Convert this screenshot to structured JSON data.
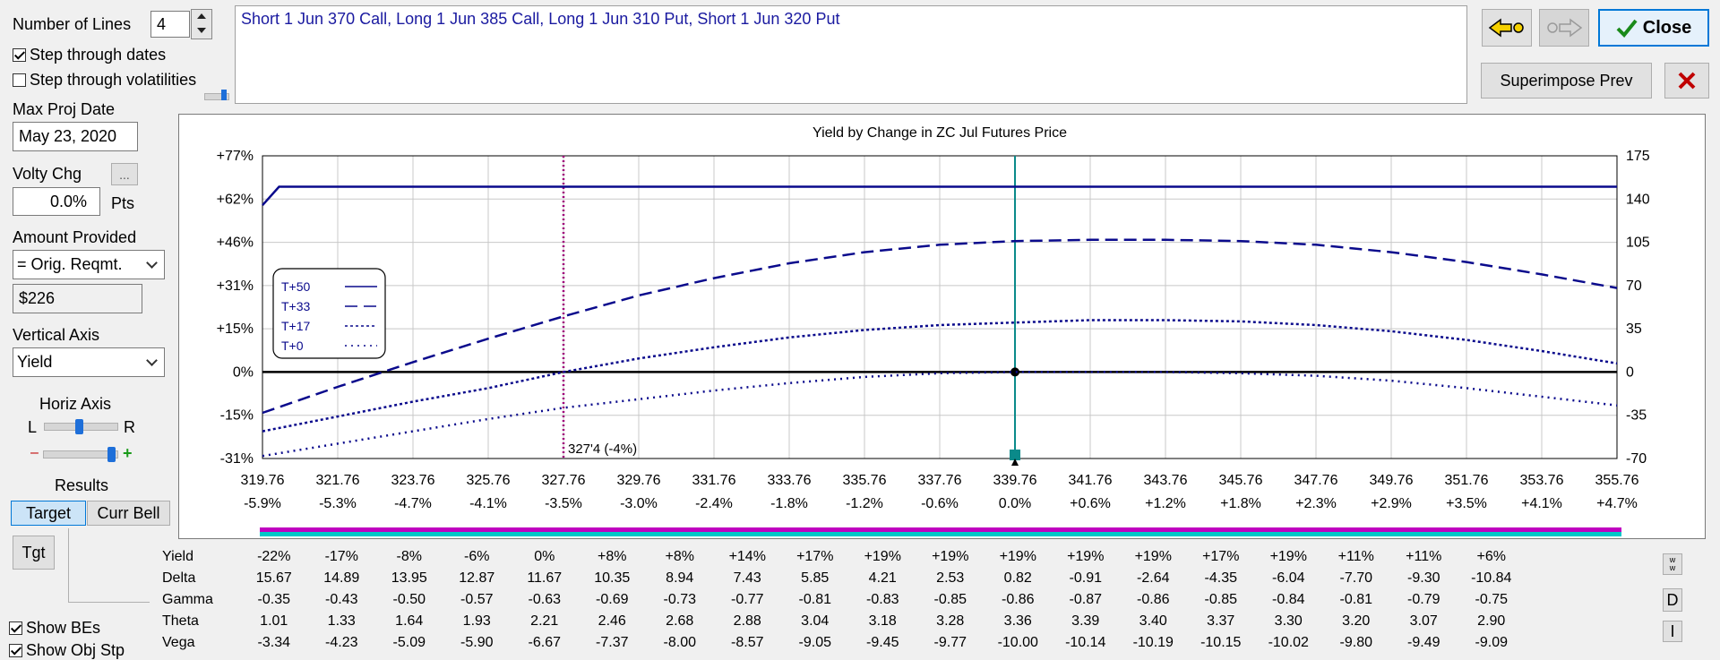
{
  "left_panel": {
    "number_of_lines_label": "Number of Lines",
    "number_of_lines_value": "4",
    "step_dates_label": "Step through dates",
    "step_dates_checked": true,
    "step_vols_label": "Step through volatilities",
    "step_vols_checked": false,
    "max_proj_date_label": "Max Proj Date",
    "max_proj_date_value": "May 23, 2020",
    "volty_chg_label": "Volty Chg",
    "volty_chg_button": "...",
    "volty_chg_value": "0.0%",
    "volty_chg_unit": "Pts",
    "amount_provided_label": "Amount Provided",
    "amount_provided_select": "= Orig. Reqmt.",
    "amount_value": "$226",
    "vertical_axis_label": "Vertical Axis",
    "vertical_axis_select": "Yield",
    "horiz_axis_label": "Horiz Axis",
    "horiz_l": "L",
    "horiz_r": "R",
    "zoom_minus": "–",
    "zoom_plus": "+",
    "results_label": "Results",
    "tab_target": "Target",
    "tab_curr_bell": "Curr Bell",
    "tgt_button": "Tgt",
    "show_bes_label": "Show BEs",
    "show_bes_checked": true,
    "show_obj_stp_label": "Show Obj Stp",
    "show_obj_stp_checked": true
  },
  "position_text": "Short 1 Jun 370 Call, Long 1 Jun 385 Call, Long 1 Jun 310 Put, Short 1 Jun 320 Put",
  "toolbar": {
    "close_label": "Close",
    "superimpose_label": "Superimpose Prev"
  },
  "chart_data": {
    "type": "line",
    "title": "Yield by Change in ZC Jul Futures Price",
    "x_ticks": [
      "319.76",
      "321.76",
      "323.76",
      "325.76",
      "327.76",
      "329.76",
      "331.76",
      "333.76",
      "335.76",
      "337.76",
      "339.76",
      "341.76",
      "343.76",
      "345.76",
      "347.76",
      "349.76",
      "351.76",
      "353.76",
      "355.76"
    ],
    "x_pct_ticks": [
      "-5.9%",
      "-5.3%",
      "-4.7%",
      "-4.1%",
      "-3.5%",
      "-3.0%",
      "-2.4%",
      "-1.8%",
      "-1.2%",
      "-0.6%",
      "0.0%",
      "+0.6%",
      "+1.2%",
      "+1.8%",
      "+2.3%",
      "+2.9%",
      "+3.5%",
      "+4.1%",
      "+4.7%"
    ],
    "xlim": [
      319.76,
      355.76
    ],
    "y_left_ticks": [
      "+77%",
      "+62%",
      "+46%",
      "+31%",
      "+15%",
      "0%",
      "-15%",
      "-31%"
    ],
    "y_right_ticks": [
      "175",
      "140",
      "105",
      "70",
      "35",
      "0",
      "-35",
      "-70"
    ],
    "ylim_right": [
      -70,
      175
    ],
    "current_price": 339.76,
    "breakeven_price": 327.76,
    "breakeven_label": "327'4 (-4%)",
    "legend_placement": "left",
    "series": [
      {
        "name": "T+50",
        "style": "solid",
        "points": [
          [
            319.76,
            135
          ],
          [
            320.2,
            150
          ],
          [
            322,
            150
          ],
          [
            326,
            150
          ],
          [
            330,
            150
          ],
          [
            334,
            150
          ],
          [
            338,
            150
          ],
          [
            340,
            150
          ],
          [
            344,
            150
          ],
          [
            348,
            150
          ],
          [
            352,
            150
          ],
          [
            355.76,
            150
          ]
        ]
      },
      {
        "name": "T+33",
        "style": "dash",
        "points": [
          [
            319.76,
            -33
          ],
          [
            321.76,
            -12
          ],
          [
            323.76,
            8
          ],
          [
            325.76,
            27
          ],
          [
            327.76,
            45
          ],
          [
            329.76,
            62
          ],
          [
            331.76,
            76
          ],
          [
            333.76,
            88
          ],
          [
            335.76,
            97
          ],
          [
            337.76,
            103
          ],
          [
            339.76,
            106
          ],
          [
            341.76,
            107
          ],
          [
            343.76,
            107
          ],
          [
            345.76,
            106
          ],
          [
            347.76,
            103
          ],
          [
            349.76,
            97
          ],
          [
            351.76,
            89
          ],
          [
            353.76,
            79
          ],
          [
            355.76,
            68
          ]
        ]
      },
      {
        "name": "T+17",
        "style": "dot-dash",
        "points": [
          [
            319.76,
            -48
          ],
          [
            321.76,
            -36
          ],
          [
            323.76,
            -24
          ],
          [
            325.76,
            -13
          ],
          [
            327.76,
            0
          ],
          [
            329.76,
            11
          ],
          [
            331.76,
            20
          ],
          [
            333.76,
            28
          ],
          [
            335.76,
            34
          ],
          [
            337.76,
            38
          ],
          [
            339.76,
            40
          ],
          [
            341.76,
            42
          ],
          [
            343.76,
            42
          ],
          [
            345.76,
            41
          ],
          [
            347.76,
            38
          ],
          [
            349.76,
            33
          ],
          [
            351.76,
            26
          ],
          [
            353.76,
            17
          ],
          [
            355.76,
            7
          ]
        ]
      },
      {
        "name": "T+0",
        "style": "dot",
        "points": [
          [
            319.76,
            -68
          ],
          [
            321.76,
            -58
          ],
          [
            323.76,
            -48
          ],
          [
            325.76,
            -38
          ],
          [
            327.76,
            -29
          ],
          [
            329.76,
            -22
          ],
          [
            331.76,
            -15
          ],
          [
            333.76,
            -9
          ],
          [
            335.76,
            -4
          ],
          [
            337.76,
            -1
          ],
          [
            339.76,
            0
          ],
          [
            341.76,
            0
          ],
          [
            343.76,
            0
          ],
          [
            345.76,
            -1
          ],
          [
            347.76,
            -3
          ],
          [
            349.76,
            -7
          ],
          [
            351.76,
            -13
          ],
          [
            353.76,
            -20
          ],
          [
            355.76,
            -27
          ]
        ]
      }
    ]
  },
  "greeks": {
    "rows": [
      {
        "name": "Yield",
        "values": [
          "-22%",
          "-17%",
          "-8%",
          "-6%",
          "0%",
          "+8%",
          "+8%",
          "+14%",
          "+17%",
          "+19%",
          "+19%",
          "+19%",
          "+19%",
          "+19%",
          "+17%",
          "+19%",
          "+11%",
          "+11%",
          "+6%"
        ]
      },
      {
        "name": "Delta",
        "values": [
          "15.67",
          "14.89",
          "13.95",
          "12.87",
          "11.67",
          "10.35",
          "8.94",
          "7.43",
          "5.85",
          "4.21",
          "2.53",
          "0.82",
          "-0.91",
          "-2.64",
          "-4.35",
          "-6.04",
          "-7.70",
          "-9.30",
          "-10.84"
        ]
      },
      {
        "name": "Gamma",
        "values": [
          "-0.35",
          "-0.43",
          "-0.50",
          "-0.57",
          "-0.63",
          "-0.69",
          "-0.73",
          "-0.77",
          "-0.81",
          "-0.83",
          "-0.85",
          "-0.86",
          "-0.87",
          "-0.86",
          "-0.85",
          "-0.84",
          "-0.81",
          "-0.79",
          "-0.75"
        ]
      },
      {
        "name": "Theta",
        "values": [
          "1.01",
          "1.33",
          "1.64",
          "1.93",
          "2.21",
          "2.46",
          "2.68",
          "2.88",
          "3.04",
          "3.18",
          "3.28",
          "3.36",
          "3.39",
          "3.40",
          "3.37",
          "3.30",
          "3.20",
          "3.07",
          "2.90"
        ]
      },
      {
        "name": "Vega",
        "values": [
          "-3.34",
          "-4.23",
          "-5.09",
          "-5.90",
          "-6.67",
          "-7.37",
          "-8.00",
          "-8.57",
          "-9.05",
          "-9.45",
          "-9.77",
          "-10.00",
          "-10.14",
          "-10.19",
          "-10.15",
          "-10.02",
          "-9.80",
          "-9.49",
          "-9.09"
        ]
      }
    ],
    "side_buttons": [
      "D",
      "I"
    ]
  },
  "colors": {
    "series": "#0a0a8c",
    "bar_magenta": "#c000c0",
    "bar_cyan": "#00c8c8",
    "marker_teal": "#0a8a8a",
    "close_check": "#1a8a1a",
    "x_red": "#c00000"
  }
}
